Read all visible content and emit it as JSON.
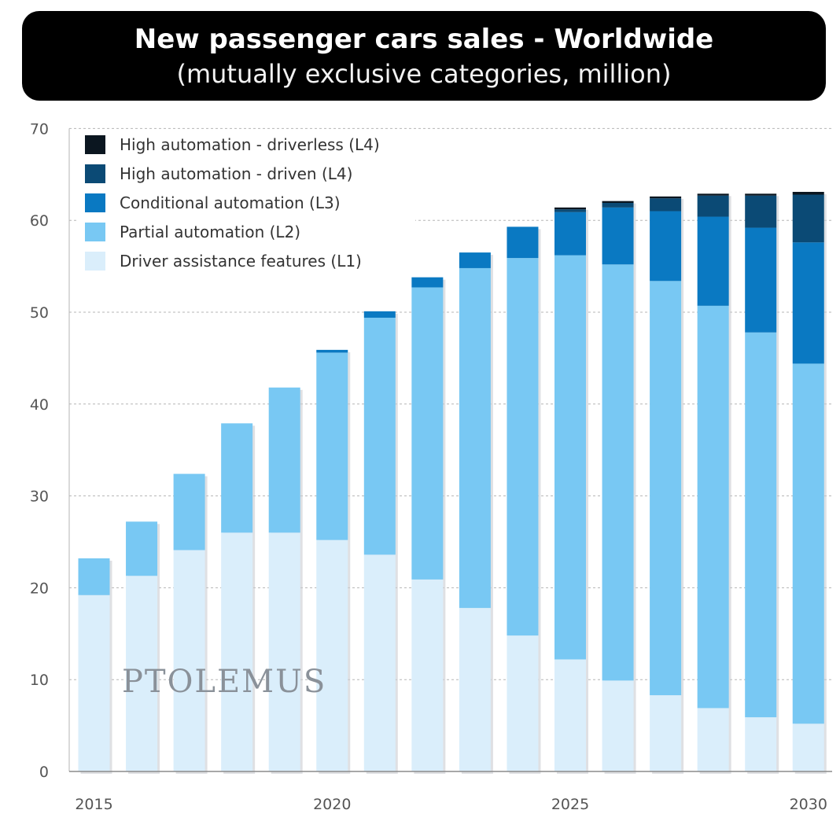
{
  "header": {
    "title": "New passenger cars sales - Worldwide",
    "subtitle": "(mutually exclusive categories, million)"
  },
  "watermark": "PTOLEMUS",
  "chart_data": {
    "type": "bar",
    "stacked": true,
    "title": "New passenger cars sales - Worldwide",
    "subtitle": "(mutually exclusive categories, million)",
    "categories": [
      "2015",
      "2016",
      "2017",
      "2018",
      "2019",
      "2020",
      "2021",
      "2022",
      "2023",
      "2024",
      "2025",
      "2026",
      "2027",
      "2028",
      "2029",
      "2030"
    ],
    "x_tick_labels": [
      "2015",
      "2020",
      "2025",
      "2030"
    ],
    "y_ticks": [
      0,
      10,
      20,
      30,
      40,
      50,
      60,
      70
    ],
    "ylim": [
      0,
      70
    ],
    "grid": true,
    "legend_position": "top-left",
    "series": [
      {
        "name": "Driver assistance features (L1)",
        "color": "#daeefb",
        "values": [
          19.2,
          21.3,
          24.1,
          26.0,
          26.0,
          25.2,
          23.6,
          20.9,
          17.8,
          14.8,
          12.2,
          9.9,
          8.3,
          6.9,
          5.9,
          5.2
        ]
      },
      {
        "name": "Partial automation (L2)",
        "color": "#78c8f3",
        "values": [
          4.0,
          5.9,
          8.3,
          11.9,
          15.8,
          20.4,
          25.8,
          31.8,
          37.0,
          41.1,
          44.0,
          45.3,
          45.1,
          43.8,
          41.9,
          39.2
        ]
      },
      {
        "name": "Conditional automation (L3)",
        "color": "#0a79c2",
        "values": [
          0.0,
          0.0,
          0.0,
          0.0,
          0.0,
          0.3,
          0.7,
          1.1,
          1.7,
          3.4,
          4.7,
          6.2,
          7.6,
          9.7,
          11.4,
          13.2
        ]
      },
      {
        "name": "High automation - driven (L4)",
        "color": "#0b4a75",
        "values": [
          0.0,
          0.0,
          0.0,
          0.0,
          0.0,
          0.0,
          0.0,
          0.0,
          0.0,
          0.0,
          0.3,
          0.5,
          1.4,
          2.3,
          3.5,
          5.2
        ]
      },
      {
        "name": "High automation - driverless (L4)",
        "color": "#0b1620",
        "values": [
          0.0,
          0.0,
          0.0,
          0.0,
          0.0,
          0.0,
          0.0,
          0.0,
          0.0,
          0.0,
          0.2,
          0.2,
          0.2,
          0.2,
          0.2,
          0.3
        ]
      }
    ]
  }
}
